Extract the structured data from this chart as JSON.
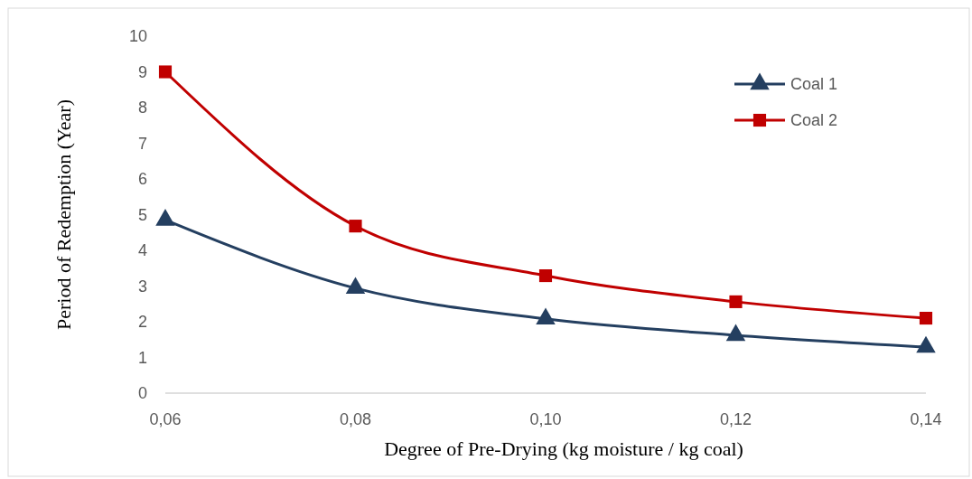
{
  "chart_data": {
    "type": "line",
    "xlabel": "Degree of Pre-Drying (kg moisture / kg coal)",
    "ylabel": "Period of Redemption (Year)",
    "x": [
      0.06,
      0.08,
      0.1,
      0.12,
      0.14
    ],
    "xlim": [
      0.06,
      0.14
    ],
    "xticks": [
      {
        "value": 0.06,
        "label": "0,06"
      },
      {
        "value": 0.08,
        "label": "0,08"
      },
      {
        "value": 0.1,
        "label": "0,10"
      },
      {
        "value": 0.12,
        "label": "0,12"
      },
      {
        "value": 0.14,
        "label": "0,14"
      }
    ],
    "ylim": [
      0,
      10
    ],
    "yticks": [
      0,
      1,
      2,
      3,
      4,
      5,
      6,
      7,
      8,
      9,
      10
    ],
    "grid": false,
    "legend": "top right",
    "line_style": "solid",
    "series": [
      {
        "name": "Coal 1",
        "color": "#243f60",
        "marker": "triangle",
        "values": [
          4.85,
          2.94,
          2.08,
          1.62,
          1.29
        ]
      },
      {
        "name": "Coal 2",
        "color": "#c00000",
        "marker": "square",
        "values": [
          9.0,
          4.68,
          3.29,
          2.56,
          2.1
        ]
      }
    ]
  }
}
